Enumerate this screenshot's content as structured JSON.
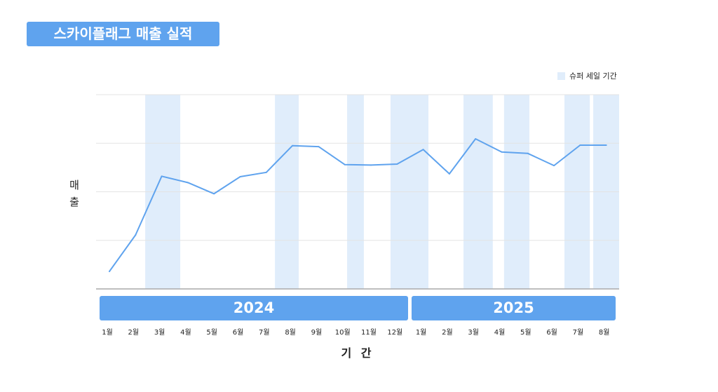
{
  "chart_data": {
    "type": "line",
    "title": "스카이플래그 매출 실적",
    "xlabel": "기 간",
    "ylabel": "매출",
    "ylim": [
      0,
      4
    ],
    "grid": true,
    "legend": {
      "placement": "top-right",
      "entries": [
        "슈퍼 세일 기간"
      ]
    },
    "years": [
      {
        "label": "2024",
        "months": 12
      },
      {
        "label": "2025",
        "months": 8
      }
    ],
    "categories": [
      "1월",
      "2월",
      "3월",
      "4월",
      "5월",
      "6월",
      "7월",
      "8월",
      "9월",
      "10월",
      "11월",
      "12월",
      "1월",
      "2월",
      "3월",
      "4월",
      "5월",
      "6월",
      "7월",
      "8월"
    ],
    "values": [
      0.36,
      1.11,
      2.32,
      2.19,
      1.96,
      2.31,
      2.4,
      2.95,
      2.93,
      2.56,
      2.55,
      2.57,
      2.87,
      2.37,
      3.09,
      2.82,
      2.79,
      2.54,
      2.96,
      2.96
    ],
    "sale_periods": [
      [
        1.37,
        2.71
      ],
      [
        6.33,
        7.24
      ],
      [
        9.09,
        9.73
      ],
      [
        10.75,
        12.2
      ],
      [
        13.54,
        14.66
      ],
      [
        15.09,
        16.06
      ],
      [
        17.4,
        18.37
      ],
      [
        18.5,
        19.5
      ]
    ],
    "colors": {
      "line": "#5fa3ee",
      "sale_band": "#e0edfb",
      "header": "#5fa3ee"
    }
  }
}
